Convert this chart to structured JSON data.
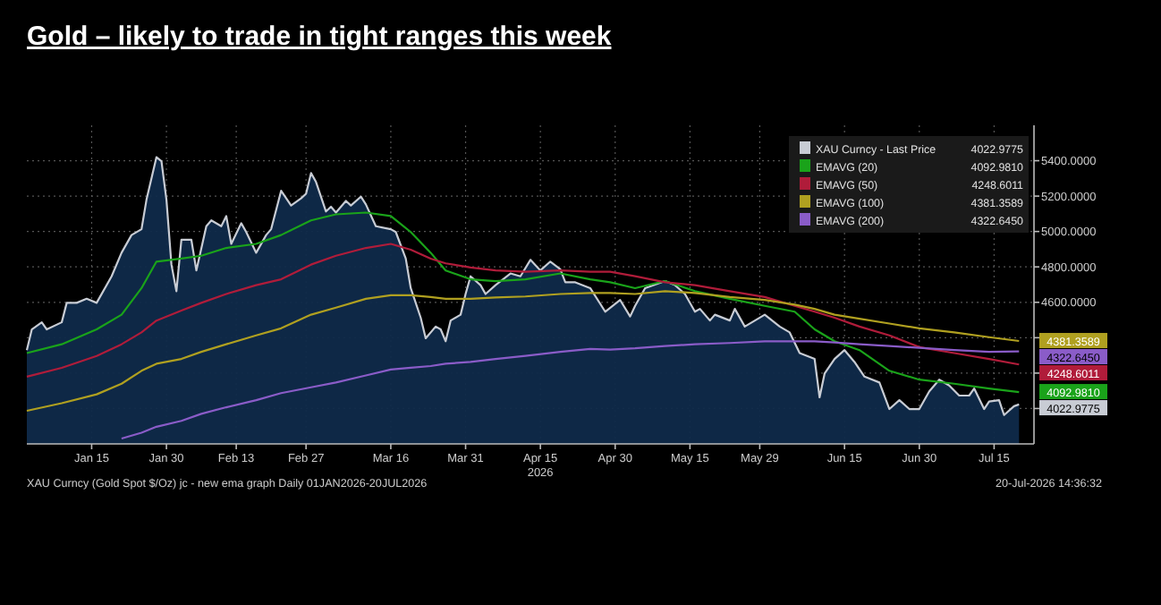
{
  "chart_data": {
    "type": "line",
    "title": "Gold – likely to trade in tight ranges this week",
    "x": [
      "2026-01-02",
      "2026-01-09",
      "2026-01-16",
      "2026-01-21",
      "2026-01-25",
      "2026-01-28",
      "2026-02-02",
      "2026-02-06",
      "2026-02-11",
      "2026-02-17",
      "2026-02-22",
      "2026-02-28",
      "2026-03-05",
      "2026-03-11",
      "2026-03-16",
      "2026-03-20",
      "2026-03-24",
      "2026-03-27",
      "2026-04-01",
      "2026-04-06",
      "2026-04-12",
      "2026-04-19",
      "2026-04-25",
      "2026-04-29",
      "2026-05-04",
      "2026-05-10",
      "2026-05-16",
      "2026-05-23",
      "2026-05-30",
      "2026-06-05",
      "2026-06-09",
      "2026-06-13",
      "2026-06-18",
      "2026-06-24",
      "2026-06-30",
      "2026-07-07",
      "2026-07-14",
      "2026-07-20"
    ],
    "series": [
      {
        "name": "XAU Curncy - Last Price",
        "type": "area",
        "color": "#c8ccd4",
        "x": [
          "2026-01-02",
          "2026-01-03",
          "2026-01-05",
          "2026-01-06",
          "2026-01-09",
          "2026-01-10",
          "2026-01-12",
          "2026-01-14",
          "2026-01-16",
          "2026-01-19",
          "2026-01-21",
          "2026-01-23",
          "2026-01-25",
          "2026-01-26",
          "2026-01-28",
          "2026-01-29",
          "2026-01-30",
          "2026-01-31",
          "2026-02-01",
          "2026-02-02",
          "2026-02-04",
          "2026-02-05",
          "2026-02-07",
          "2026-02-08",
          "2026-02-10",
          "2026-02-11",
          "2026-02-12",
          "2026-02-14",
          "2026-02-15",
          "2026-02-17",
          "2026-02-19",
          "2026-02-20",
          "2026-02-22",
          "2026-02-24",
          "2026-02-26",
          "2026-02-27",
          "2026-02-28",
          "2026-03-01",
          "2026-03-03",
          "2026-03-04",
          "2026-03-05",
          "2026-03-07",
          "2026-03-08",
          "2026-03-10",
          "2026-03-11",
          "2026-03-13",
          "2026-03-16",
          "2026-03-17",
          "2026-03-19",
          "2026-03-20",
          "2026-03-22",
          "2026-03-23",
          "2026-03-25",
          "2026-03-26",
          "2026-03-27",
          "2026-03-28",
          "2026-03-30",
          "2026-03-31",
          "2026-04-01",
          "2026-04-03",
          "2026-04-04",
          "2026-04-06",
          "2026-04-09",
          "2026-04-11",
          "2026-04-13",
          "2026-04-15",
          "2026-04-17",
          "2026-04-19",
          "2026-04-20",
          "2026-04-22",
          "2026-04-25",
          "2026-04-28",
          "2026-05-01",
          "2026-05-03",
          "2026-05-04",
          "2026-05-06",
          "2026-05-10",
          "2026-05-12",
          "2026-05-14",
          "2026-05-16",
          "2026-05-17",
          "2026-05-19",
          "2026-05-20",
          "2026-05-23",
          "2026-05-24",
          "2026-05-26",
          "2026-05-30",
          "2026-06-02",
          "2026-06-04",
          "2026-06-06",
          "2026-06-09",
          "2026-06-10",
          "2026-06-11",
          "2026-06-13",
          "2026-06-15",
          "2026-06-17",
          "2026-06-19",
          "2026-06-22",
          "2026-06-24",
          "2026-06-26",
          "2026-06-28",
          "2026-06-30",
          "2026-07-02",
          "2026-07-04",
          "2026-07-06",
          "2026-07-08",
          "2026-07-10",
          "2026-07-11",
          "2026-07-13",
          "2026-07-14",
          "2026-07-16",
          "2026-07-17",
          "2026-07-19",
          "2026-07-20"
        ],
        "values": [
          4330,
          4447,
          4487,
          4447,
          4487,
          4597,
          4597,
          4620,
          4597,
          4747,
          4880,
          4980,
          5013,
          5180,
          5420,
          5397,
          5180,
          4813,
          4663,
          4953,
          4953,
          4780,
          5030,
          5063,
          5030,
          5087,
          4930,
          5047,
          4997,
          4880,
          4980,
          5013,
          5230,
          5147,
          5187,
          5213,
          5330,
          5280,
          5113,
          5140,
          5107,
          5173,
          5147,
          5197,
          5153,
          5030,
          5013,
          4997,
          4847,
          4680,
          4513,
          4397,
          4463,
          4447,
          4380,
          4497,
          4530,
          4647,
          4747,
          4697,
          4647,
          4697,
          4763,
          4747,
          4840,
          4780,
          4830,
          4787,
          4713,
          4713,
          4680,
          4547,
          4613,
          4520,
          4580,
          4680,
          4720,
          4697,
          4647,
          4547,
          4563,
          4497,
          4530,
          4497,
          4563,
          4463,
          4530,
          4463,
          4430,
          4313,
          4280,
          4063,
          4197,
          4280,
          4330,
          4263,
          4180,
          4147,
          3997,
          4047,
          3997,
          3997,
          4097,
          4163,
          4130,
          4073,
          4073,
          4113,
          3997,
          4040,
          4047,
          3963,
          4013,
          4022.9775
        ]
      },
      {
        "name": "EMAVG (20)",
        "color": "#1aa31a",
        "values": [
          4313,
          4363,
          4447,
          4530,
          4680,
          4830,
          4847,
          4863,
          4907,
          4930,
          4980,
          5063,
          5097,
          5107,
          5087,
          4997,
          4880,
          4780,
          4730,
          4720,
          4730,
          4763,
          4730,
          4713,
          4680,
          4720,
          4663,
          4620,
          4580,
          4547,
          4447,
          4380,
          4330,
          4213,
          4163,
          4140,
          4113,
          4092.981
        ]
      },
      {
        "name": "EMAVG (50)",
        "color": "#b01c3a",
        "values": [
          4180,
          4230,
          4297,
          4363,
          4430,
          4497,
          4553,
          4597,
          4647,
          4697,
          4730,
          4813,
          4863,
          4907,
          4930,
          4897,
          4847,
          4820,
          4797,
          4780,
          4773,
          4780,
          4773,
          4773,
          4747,
          4713,
          4697,
          4663,
          4630,
          4580,
          4547,
          4513,
          4463,
          4413,
          4347,
          4313,
          4280,
          4248.6011
        ]
      },
      {
        "name": "EMAVG (100)",
        "color": "#b0a020",
        "values": [
          3987,
          4030,
          4080,
          4140,
          4213,
          4253,
          4280,
          4320,
          4363,
          4413,
          4453,
          4530,
          4570,
          4620,
          4640,
          4640,
          4630,
          4620,
          4620,
          4627,
          4633,
          4647,
          4653,
          4653,
          4647,
          4663,
          4653,
          4630,
          4613,
          4587,
          4563,
          4530,
          4507,
          4480,
          4453,
          4430,
          4403,
          4381.3589
        ]
      },
      {
        "name": "EMAVG (200)",
        "color": "#8a5cc8",
        "values": [
          null,
          null,
          null,
          3830,
          3863,
          3897,
          3930,
          3970,
          4007,
          4047,
          4087,
          4120,
          4147,
          4187,
          4220,
          4230,
          4240,
          4253,
          4263,
          4280,
          4297,
          4320,
          4337,
          4333,
          4340,
          4353,
          4363,
          4370,
          4380,
          4380,
          4380,
          4373,
          4363,
          4353,
          4343,
          4330,
          4320,
          4322.645
        ]
      }
    ],
    "xlim": [
      "2026-01-02",
      "2026-07-23"
    ],
    "xticks": [
      {
        "value": "2026-01-15",
        "label": "Jan 15"
      },
      {
        "value": "2026-01-30",
        "label": "Jan 30"
      },
      {
        "value": "2026-02-13",
        "label": "Feb 13"
      },
      {
        "value": "2026-02-27",
        "label": "Feb 27"
      },
      {
        "value": "2026-03-16",
        "label": "Mar 16"
      },
      {
        "value": "2026-03-31",
        "label": "Mar 31"
      },
      {
        "value": "2026-04-15",
        "label": "Apr 15\n2026"
      },
      {
        "value": "2026-04-30",
        "label": "Apr 30"
      },
      {
        "value": "2026-05-15",
        "label": "May 15"
      },
      {
        "value": "2026-05-29",
        "label": "May 29"
      },
      {
        "value": "2026-06-15",
        "label": "Jun 15"
      },
      {
        "value": "2026-06-30",
        "label": "Jun 30"
      },
      {
        "value": "2026-07-15",
        "label": "Jul 15"
      }
    ],
    "ylim": [
      3800,
      5600
    ],
    "yticks": [
      {
        "value": 4000,
        "label": null
      },
      {
        "value": 4200,
        "label": null
      },
      {
        "value": 4400,
        "label": null
      },
      {
        "value": 4600,
        "label": "4600.0000"
      },
      {
        "value": 4800,
        "label": "4800.0000"
      },
      {
        "value": 5000,
        "label": "5000.0000"
      },
      {
        "value": 5200,
        "label": "5200.0000"
      },
      {
        "value": 5400,
        "label": "5400.0000"
      }
    ],
    "grid": true,
    "legend": "top right",
    "annotations": [
      "XAU Curncy (Gold Spot  $/Oz) jc - new ema graph Daily 01JAN2026-20JUL2026",
      "20-Jul-2026 14:36:32",
      {
        "text": "4022.9775",
        "x": "2026-07-20",
        "y": 4022.9775
      },
      {
        "text": "4092.9810",
        "x": "2026-07-20",
        "y": 4092.981
      },
      {
        "text": "4248.6011",
        "x": "2026-07-20",
        "y": 4248.6011
      },
      {
        "text": "4381.3589",
        "x": "2026-07-20",
        "y": 4381.3589
      },
      {
        "text": "4322.6450",
        "x": "2026-07-20",
        "y": 4322.645
      }
    ]
  }
}
